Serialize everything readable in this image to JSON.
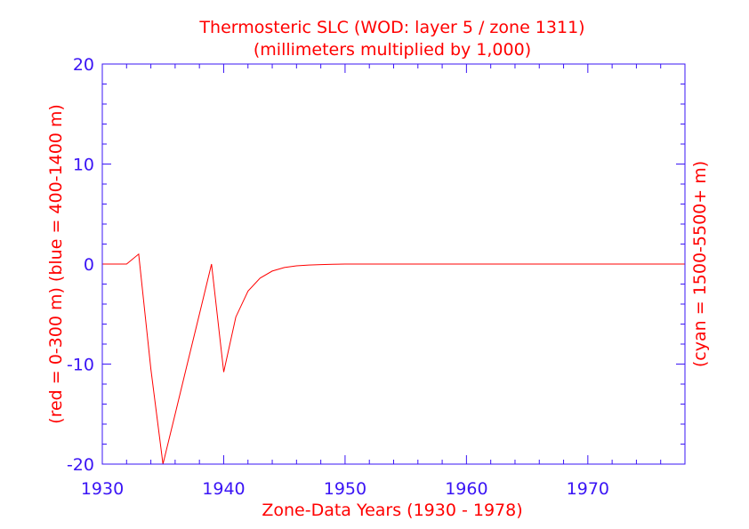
{
  "chart_data": {
    "type": "line",
    "title": "Thermosteric SLC (WOD: layer 5 / zone 1311)",
    "subtitle": "(millimeters multiplied by 1,000)",
    "xlabel": "Zone-Data Years (1930 - 1978)",
    "ylabel_left": "(red = 0-300 m)  (blue = 400-1400 m)",
    "ylabel_right": "(cyan = 1500-5500+ m)",
    "xlim": [
      1930,
      1978
    ],
    "ylim": [
      -20,
      20
    ],
    "x_ticks": [
      "1930",
      "1940",
      "1950",
      "1960",
      "1970"
    ],
    "y_ticks": [
      "20",
      "10",
      "0",
      "-10",
      "-20"
    ],
    "grid": false,
    "colors": {
      "axes": "#3a14f5",
      "text": "#ff0000",
      "series_red": "#ff0000"
    },
    "series": [
      {
        "color": "#ff0000",
        "x": [
          1930,
          1931,
          1932,
          1933,
          1934,
          1935,
          1936,
          1937,
          1938,
          1939,
          1940,
          1941,
          1942,
          1943,
          1944,
          1945,
          1946,
          1947,
          1948,
          1949,
          1950,
          1955,
          1960,
          1965,
          1970,
          1975,
          1978
        ],
        "y": [
          0,
          0,
          0,
          1,
          -10.5,
          -20,
          -15,
          -10,
          -5,
          0,
          -10.8,
          -5.3,
          -2.7,
          -1.4,
          -0.7,
          -0.35,
          -0.18,
          -0.1,
          -0.05,
          -0.02,
          0,
          0,
          0,
          0,
          0,
          0,
          0
        ]
      }
    ]
  }
}
